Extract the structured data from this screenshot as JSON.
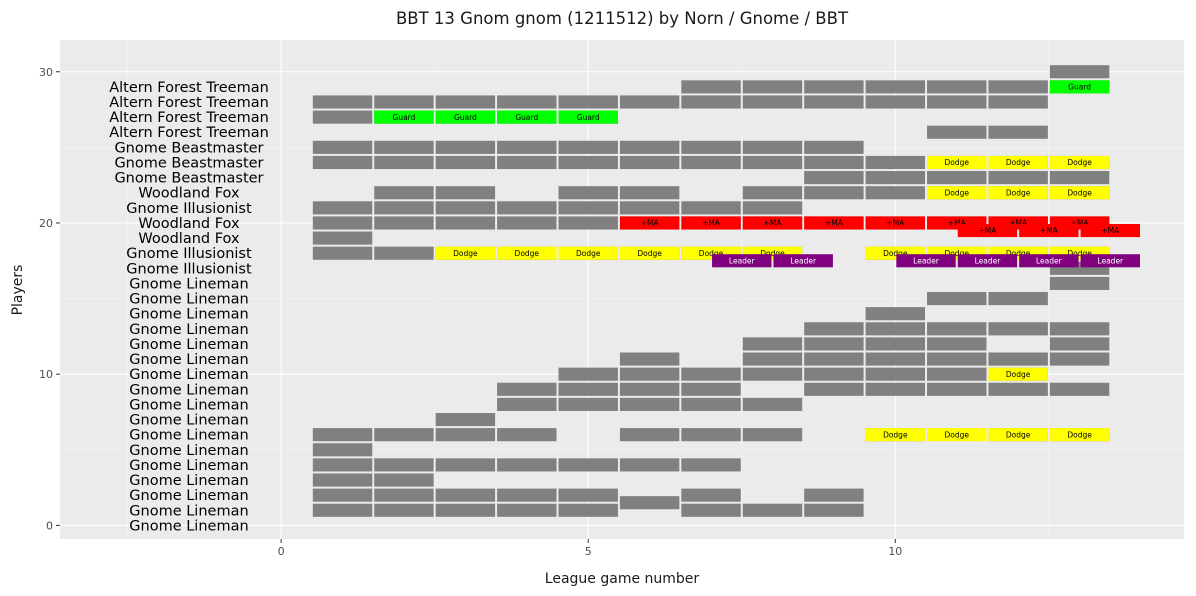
{
  "chart_data": {
    "type": "heatmap",
    "title": "BBT 13 Gnom gnom (1211512) by Norn / Gnome / BBT",
    "xlabel": "League game number",
    "ylabel": "Players",
    "xlim": [
      -3.6,
      14.7
    ],
    "ylim": [
      -0.9,
      32.1
    ],
    "x_ticks": [
      0,
      5,
      10
    ],
    "y_ticks": [
      0,
      10,
      20,
      30
    ],
    "grid": true,
    "colors": {
      "panel": "#ebebeb",
      "grid_major": "#ffffff",
      "grid_minor": "#f5f5f5",
      "game": "#808080",
      "Guard": "#00ff00",
      "Dodge": "#ffff00",
      "+MA": "#ff0000",
      "Leader": "#800080"
    },
    "players": [
      {
        "row": 1,
        "name": "Gnome Lineman"
      },
      {
        "row": 2,
        "name": "Gnome Lineman"
      },
      {
        "row": 3,
        "name": "Gnome Lineman"
      },
      {
        "row": 4,
        "name": "Gnome Lineman"
      },
      {
        "row": 5,
        "name": "Gnome Lineman"
      },
      {
        "row": 6,
        "name": "Gnome Lineman"
      },
      {
        "row": 7,
        "name": "Gnome Lineman"
      },
      {
        "row": 8,
        "name": "Gnome Lineman"
      },
      {
        "row": 9,
        "name": "Gnome Lineman"
      },
      {
        "row": 10,
        "name": "Gnome Lineman"
      },
      {
        "row": 11,
        "name": "Gnome Lineman"
      },
      {
        "row": 12,
        "name": "Gnome Lineman"
      },
      {
        "row": 13,
        "name": "Gnome Lineman"
      },
      {
        "row": 14,
        "name": "Gnome Lineman"
      },
      {
        "row": 15,
        "name": "Gnome Lineman"
      },
      {
        "row": 16,
        "name": "Gnome Lineman"
      },
      {
        "row": 17,
        "name": "Gnome Lineman"
      },
      {
        "row": 18,
        "name": "Gnome Illusionist"
      },
      {
        "row": 19,
        "name": "Gnome Illusionist"
      },
      {
        "row": 20,
        "name": "Woodland Fox"
      },
      {
        "row": 21,
        "name": "Woodland Fox"
      },
      {
        "row": 22,
        "name": "Gnome Illusionist"
      },
      {
        "row": 23,
        "name": "Woodland Fox"
      },
      {
        "row": 24,
        "name": "Gnome Beastmaster"
      },
      {
        "row": 25,
        "name": "Gnome Beastmaster"
      },
      {
        "row": 26,
        "name": "Gnome Beastmaster"
      },
      {
        "row": 27,
        "name": "Altern Forest Treeman"
      },
      {
        "row": 28,
        "name": "Altern Forest Treeman"
      },
      {
        "row": 29,
        "name": "Altern Forest Treeman"
      },
      {
        "row": 30,
        "name": "Altern Forest Treeman"
      }
    ],
    "games": [
      {
        "game": 1,
        "y": [
          1,
          2,
          3,
          4,
          5,
          6,
          18,
          19,
          20,
          21,
          24,
          25,
          27,
          28
        ]
      },
      {
        "game": 2,
        "y": [
          1,
          2,
          3,
          4,
          6,
          18,
          20,
          21,
          22,
          24,
          25,
          27,
          28
        ]
      },
      {
        "game": 3,
        "y": [
          1,
          2,
          4,
          6,
          7,
          18,
          20,
          21,
          22,
          24,
          25,
          27,
          28
        ]
      },
      {
        "game": 4,
        "y": [
          1,
          2,
          4,
          6,
          8,
          9,
          18,
          20,
          21,
          24,
          25,
          27,
          28
        ]
      },
      {
        "game": 5,
        "y": [
          1,
          2,
          4,
          8,
          9,
          10,
          18,
          20,
          21,
          22,
          24,
          25,
          27,
          28
        ]
      },
      {
        "game": 6,
        "y": [
          1.5,
          4,
          6,
          8,
          9,
          10,
          11,
          18,
          20,
          21,
          22,
          24,
          25,
          28
        ]
      },
      {
        "game": 7,
        "y": [
          1,
          2,
          4,
          6,
          8,
          9,
          10,
          18,
          20,
          21,
          24,
          25,
          28,
          29
        ]
      },
      {
        "game": 8,
        "y": [
          1,
          6,
          8,
          10,
          11,
          12,
          18,
          20,
          21,
          22,
          24,
          25,
          28,
          29
        ]
      },
      {
        "game": 9,
        "y": [
          1,
          2,
          9,
          10,
          11,
          12,
          13,
          20,
          22,
          23,
          24,
          25,
          28,
          29
        ]
      },
      {
        "game": 10,
        "y": [
          6,
          9,
          10,
          11,
          12,
          13,
          14,
          18,
          20,
          22,
          23,
          24,
          28,
          29
        ]
      },
      {
        "game": 11,
        "y": [
          9,
          10,
          11,
          12,
          13,
          15,
          18,
          20,
          22,
          23,
          24,
          26,
          28,
          29
        ]
      },
      {
        "game": 12,
        "y": [
          6,
          9,
          10,
          11,
          13,
          15,
          18,
          20,
          22,
          23,
          24,
          26,
          28,
          29
        ]
      },
      {
        "game": 13,
        "y": [
          6,
          9,
          11,
          12,
          13,
          16,
          17,
          18,
          20,
          22,
          23,
          24,
          29,
          30
        ]
      }
    ],
    "skills": [
      {
        "game": 2,
        "y": 27,
        "skill": "Guard"
      },
      {
        "game": 3,
        "y": 27,
        "skill": "Guard"
      },
      {
        "game": 4,
        "y": 27,
        "skill": "Guard"
      },
      {
        "game": 5,
        "y": 27,
        "skill": "Guard"
      },
      {
        "game": 13,
        "y": 29,
        "skill": "Guard"
      },
      {
        "game": 11,
        "y": 24,
        "skill": "Dodge"
      },
      {
        "game": 12,
        "y": 24,
        "skill": "Dodge"
      },
      {
        "game": 13,
        "y": 24,
        "skill": "Dodge"
      },
      {
        "game": 11,
        "y": 22,
        "skill": "Dodge"
      },
      {
        "game": 12,
        "y": 22,
        "skill": "Dodge"
      },
      {
        "game": 13,
        "y": 22,
        "skill": "Dodge"
      },
      {
        "game": 6,
        "y": 20,
        "skill": "+MA"
      },
      {
        "game": 7,
        "y": 20,
        "skill": "+MA"
      },
      {
        "game": 8,
        "y": 20,
        "skill": "+MA"
      },
      {
        "game": 9,
        "y": 20,
        "skill": "+MA"
      },
      {
        "game": 10,
        "y": 20,
        "skill": "+MA"
      },
      {
        "game": 11,
        "y": 20,
        "skill": "+MA"
      },
      {
        "game": 12,
        "y": 20,
        "skill": "+MA"
      },
      {
        "game": 13,
        "y": 20,
        "skill": "+MA"
      },
      {
        "game": 11.5,
        "y": 19.5,
        "skill": "+MA"
      },
      {
        "game": 12.5,
        "y": 19.5,
        "skill": "+MA"
      },
      {
        "game": 13.5,
        "y": 19.5,
        "skill": "+MA"
      },
      {
        "game": 3,
        "y": 18,
        "skill": "Dodge"
      },
      {
        "game": 4,
        "y": 18,
        "skill": "Dodge"
      },
      {
        "game": 5,
        "y": 18,
        "skill": "Dodge"
      },
      {
        "game": 6,
        "y": 18,
        "skill": "Dodge"
      },
      {
        "game": 7,
        "y": 18,
        "skill": "Dodge"
      },
      {
        "game": 8,
        "y": 18,
        "skill": "Dodge"
      },
      {
        "game": 10,
        "y": 18,
        "skill": "Dodge"
      },
      {
        "game": 11,
        "y": 18,
        "skill": "Dodge"
      },
      {
        "game": 12,
        "y": 18,
        "skill": "Dodge"
      },
      {
        "game": 13,
        "y": 18,
        "skill": "Dodge"
      },
      {
        "game": 7.5,
        "y": 17.5,
        "skill": "Leader"
      },
      {
        "game": 8.5,
        "y": 17.5,
        "skill": "Leader"
      },
      {
        "game": 10.5,
        "y": 17.5,
        "skill": "Leader"
      },
      {
        "game": 11.5,
        "y": 17.5,
        "skill": "Leader"
      },
      {
        "game": 12.5,
        "y": 17.5,
        "skill": "Leader"
      },
      {
        "game": 13.5,
        "y": 17.5,
        "skill": "Leader"
      },
      {
        "game": 12,
        "y": 10,
        "skill": "Dodge"
      },
      {
        "game": 10,
        "y": 6,
        "skill": "Dodge"
      },
      {
        "game": 11,
        "y": 6,
        "skill": "Dodge"
      },
      {
        "game": 12,
        "y": 6,
        "skill": "Dodge"
      },
      {
        "game": 13,
        "y": 6,
        "skill": "Dodge"
      }
    ]
  }
}
